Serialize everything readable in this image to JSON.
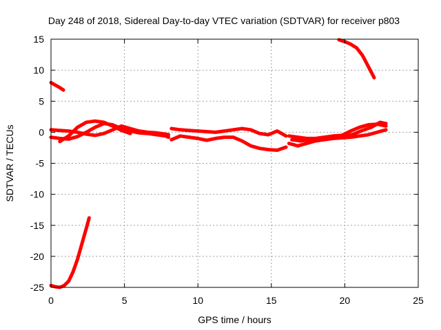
{
  "chart_data": {
    "type": "line",
    "title": "Day 248 of 2018, Sidereal Day-to-day VTEC variation (SDTVAR) for receiver p803",
    "xlabel": "GPS time / hours",
    "ylabel": "SDTVAR / TECUs",
    "xlim": [
      0,
      25
    ],
    "ylim": [
      -25,
      15
    ],
    "xticks": [
      0,
      5,
      10,
      15,
      20,
      25
    ],
    "yticks": [
      -25,
      -20,
      -15,
      -10,
      -5,
      0,
      5,
      10,
      15
    ],
    "grid": true,
    "series_color": "#ff0000",
    "series": [
      {
        "name": "arc-early-top",
        "x": [
          0.0,
          0.3,
          0.6,
          0.85
        ],
        "y": [
          8.0,
          7.6,
          7.2,
          6.8
        ]
      },
      {
        "name": "arc-early-bottom",
        "x": [
          0.0,
          0.3,
          0.6,
          0.9,
          1.2,
          1.5,
          1.8,
          2.1,
          2.4,
          2.6
        ],
        "y": [
          -24.7,
          -24.9,
          -25.0,
          -24.7,
          -24.0,
          -22.5,
          -20.5,
          -18.0,
          -15.5,
          -13.8
        ]
      },
      {
        "name": "arc-late-top",
        "x": [
          19.6,
          20.0,
          20.4,
          20.8,
          21.2,
          21.6,
          22.0
        ],
        "y": [
          14.9,
          14.6,
          14.2,
          13.6,
          12.4,
          10.6,
          8.8
        ]
      },
      {
        "name": "band-a",
        "x": [
          0.0,
          0.6,
          1.2,
          1.8,
          2.4,
          3.0,
          3.6,
          4.2,
          4.8,
          5.4,
          6.0,
          6.6,
          7.2,
          7.8,
          8.0
        ],
        "y": [
          0.4,
          0.3,
          0.2,
          0.0,
          -0.3,
          -0.5,
          -0.2,
          0.4,
          1.0,
          0.6,
          0.2,
          0.0,
          -0.1,
          -0.3,
          -0.4
        ]
      },
      {
        "name": "band-b",
        "x": [
          0.0,
          0.6,
          1.2,
          1.8,
          2.4,
          3.0,
          3.6,
          4.2,
          4.8,
          5.4,
          6.0,
          6.6,
          7.2,
          7.8,
          8.0
        ],
        "y": [
          -0.8,
          -1.0,
          -1.1,
          -0.7,
          0.0,
          0.8,
          1.4,
          1.2,
          0.6,
          0.2,
          -0.1,
          -0.2,
          -0.4,
          -0.6,
          -0.8
        ]
      },
      {
        "name": "band-c",
        "x": [
          0.6,
          1.2,
          1.8,
          2.4,
          3.0,
          3.6,
          4.2,
          4.8,
          5.4
        ],
        "y": [
          -1.5,
          -0.6,
          0.8,
          1.6,
          1.8,
          1.6,
          1.0,
          0.3,
          -0.2
        ]
      },
      {
        "name": "band-d",
        "x": [
          8.2,
          8.8,
          9.4,
          10.0,
          10.6,
          11.2,
          11.8,
          12.4,
          13.0,
          13.6,
          14.2,
          14.8,
          15.4,
          16.0
        ],
        "y": [
          0.6,
          0.4,
          0.3,
          0.2,
          0.1,
          0.0,
          0.2,
          0.4,
          0.6,
          0.4,
          -0.2,
          -0.4,
          0.2,
          -0.6
        ]
      },
      {
        "name": "band-e",
        "x": [
          8.2,
          8.8,
          9.4,
          10.0,
          10.6,
          11.2,
          11.8,
          12.4,
          13.0,
          13.6,
          14.2,
          14.8,
          15.4,
          16.0
        ],
        "y": [
          -1.2,
          -0.6,
          -0.8,
          -1.0,
          -1.3,
          -1.0,
          -0.8,
          -0.8,
          -1.4,
          -2.2,
          -2.6,
          -2.8,
          -2.9,
          -2.4
        ]
      },
      {
        "name": "band-f",
        "x": [
          16.2,
          16.8,
          17.4,
          18.0,
          18.6,
          19.2,
          19.8,
          20.4,
          21.0,
          21.6,
          22.2,
          22.8
        ],
        "y": [
          -0.6,
          -0.8,
          -1.0,
          -1.0,
          -0.8,
          -0.6,
          -0.5,
          0.2,
          0.8,
          1.2,
          1.3,
          1.0
        ]
      },
      {
        "name": "band-g",
        "x": [
          16.2,
          16.8,
          17.4,
          18.0,
          18.6,
          19.2,
          19.8,
          20.4,
          21.0,
          21.6,
          22.2,
          22.8
        ],
        "y": [
          -1.8,
          -2.2,
          -1.8,
          -1.4,
          -1.2,
          -1.0,
          -0.9,
          -0.8,
          -0.6,
          -0.4,
          0.0,
          0.4
        ]
      },
      {
        "name": "band-h",
        "x": [
          16.4,
          17.0,
          17.6,
          18.2,
          18.8,
          19.4,
          20.0,
          20.6,
          21.2,
          21.8,
          22.4,
          22.8
        ],
        "y": [
          -1.2,
          -1.4,
          -1.2,
          -1.0,
          -0.8,
          -0.8,
          -0.7,
          -0.3,
          0.3,
          0.8,
          1.6,
          1.4
        ]
      }
    ]
  }
}
